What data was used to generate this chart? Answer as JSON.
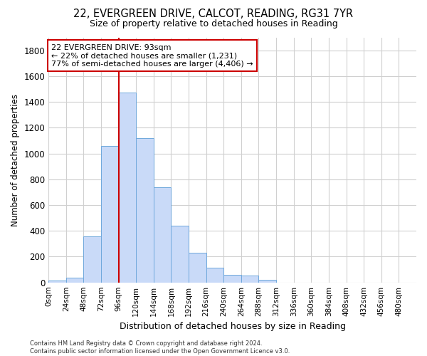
{
  "title_line1": "22, EVERGREEN DRIVE, CALCOT, READING, RG31 7YR",
  "title_line2": "Size of property relative to detached houses in Reading",
  "xlabel": "Distribution of detached houses by size in Reading",
  "ylabel": "Number of detached properties",
  "bar_labels": [
    "0sqm",
    "24sqm",
    "48sqm",
    "72sqm",
    "96sqm",
    "120sqm",
    "144sqm",
    "168sqm",
    "192sqm",
    "216sqm",
    "240sqm",
    "264sqm",
    "288sqm",
    "312sqm",
    "336sqm",
    "360sqm",
    "384sqm",
    "408sqm",
    "432sqm",
    "456sqm",
    "480sqm"
  ],
  "bar_values": [
    15,
    35,
    355,
    1060,
    1470,
    1120,
    740,
    440,
    230,
    115,
    60,
    55,
    20,
    0,
    0,
    0,
    0,
    0,
    0,
    0,
    0
  ],
  "bar_color": "#c9daf8",
  "bar_edge_color": "#6fa8dc",
  "grid_color": "#d0d0d0",
  "ylim": [
    0,
    1900
  ],
  "yticks": [
    0,
    200,
    400,
    600,
    800,
    1000,
    1200,
    1400,
    1600,
    1800
  ],
  "annotation_text_line1": "22 EVERGREEN DRIVE: 93sqm",
  "annotation_text_line2": "← 22% of detached houses are smaller (1,231)",
  "annotation_text_line3": "77% of semi-detached houses are larger (4,406) →",
  "annotation_box_facecolor": "#ffffff",
  "annotation_box_edgecolor": "#cc0000",
  "red_line_x": 96,
  "footer_line1": "Contains HM Land Registry data © Crown copyright and database right 2024.",
  "footer_line2": "Contains public sector information licensed under the Open Government Licence v3.0.",
  "bin_width": 24
}
